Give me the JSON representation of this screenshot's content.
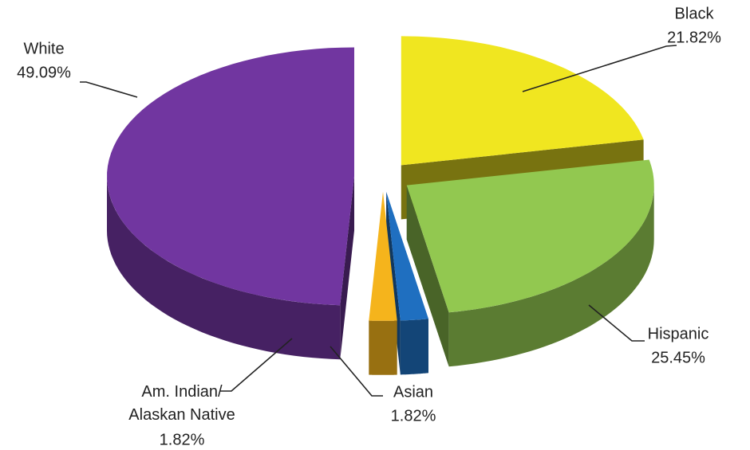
{
  "chart_data": {
    "type": "pie3d",
    "categories": [
      "Black",
      "Hispanic",
      "Asian",
      "Am. Indian/Alaskan Native",
      "White"
    ],
    "values": [
      21.82,
      25.45,
      1.82,
      1.82,
      49.09
    ],
    "value_labels": [
      "21.82%",
      "25.45%",
      "1.82%",
      "1.82%",
      "49.09%"
    ],
    "colors": [
      "#f0e620",
      "#92c850",
      "#1f6fc0",
      "#f5b41c",
      "#7136a0"
    ]
  }
}
